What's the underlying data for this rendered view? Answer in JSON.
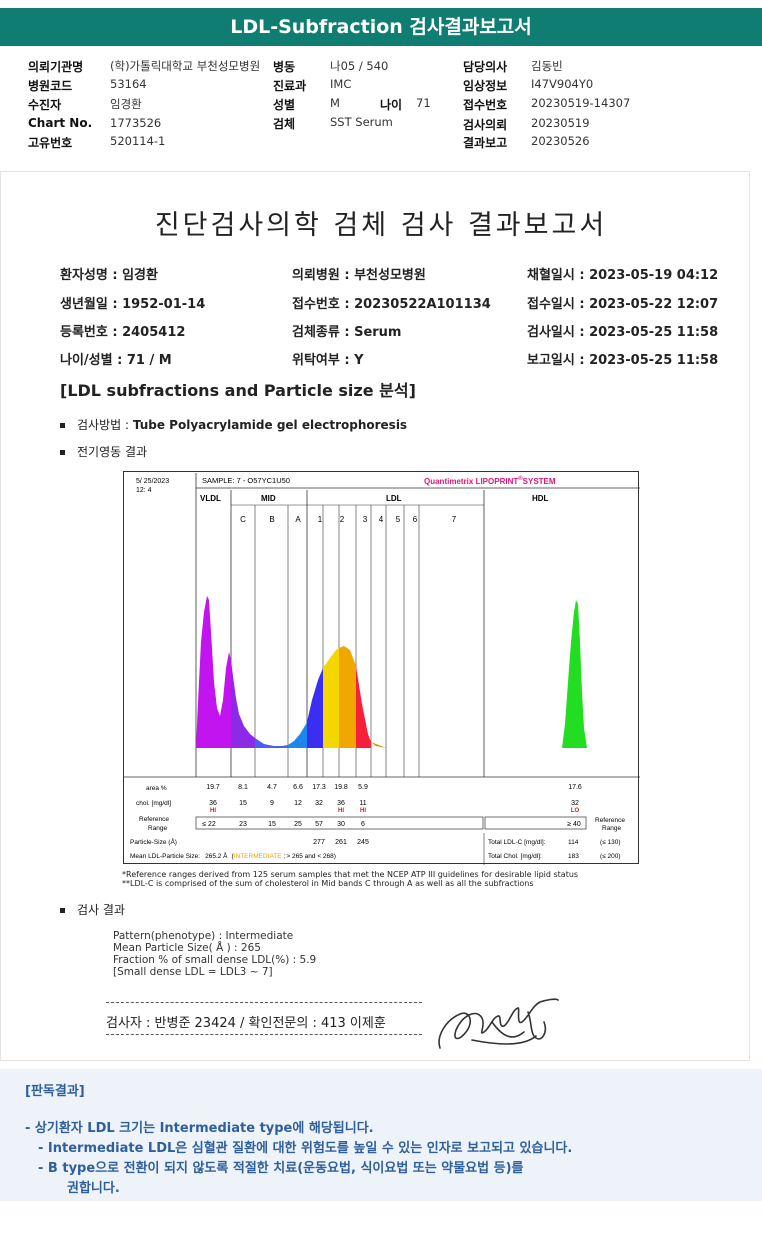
{
  "page_title": "LDL-Subfraction 검사결과보고서",
  "header_info": [
    {
      "label": "의뢰기관명",
      "value": "(학)가톨릭대학교 부천성모병원"
    },
    {
      "label": "병동",
      "value": "나05 / 540"
    },
    {
      "label": "담당의사",
      "value": "김동빈"
    },
    {
      "label": "병원코드",
      "value": "53164"
    },
    {
      "label": "진료과",
      "value": "IMC"
    },
    {
      "label": "임상정보",
      "value": "I47V904Y0"
    },
    {
      "label": "수진자",
      "value": "임경환"
    },
    {
      "label": "성별",
      "value": "M"
    },
    {
      "label": "나이",
      "value": "71"
    },
    {
      "label": "접수번호",
      "value": "20230519-14307"
    },
    {
      "label": "Chart No.",
      "value": "1773526"
    },
    {
      "label": "검체",
      "value": "SST Serum"
    },
    {
      "label": "검사의뢰",
      "value": "20230519"
    },
    {
      "label": "고유번호",
      "value": "520114-1"
    },
    {
      "label": "결과보고",
      "value": "20230526"
    }
  ],
  "report_title": "진단검사의학 검체 검사 결과보고서",
  "patient_info": [
    "환자성명 : 임경환",
    "의뢰병원 : 부천성모병원",
    "채혈일시 : 2023-05-19 04:12",
    "생년월일 : 1952-01-14",
    "접수번호 : 20230522A101134",
    "접수일시 : 2023-05-22 12:07",
    "등록번호 : 2405412",
    "검체종류 : Serum",
    "검사일시 : 2023-05-25 11:58",
    "나이/성별 : 71 / M",
    "위탁여부 : Y",
    "보고일시 : 2023-05-25 11:58"
  ],
  "section_heading": "[LDL subfractions and Particle size 분석]",
  "bullets": {
    "method_label": "검사방법 : ",
    "method_value": "Tube Polyacrylamide gel electrophoresis",
    "electro_label": "전기영동 결과",
    "result_label": "검사 결과"
  },
  "chart": {
    "date": "5/ 25/2023",
    "time": "12: 4",
    "sample": "SAMPLE:   7 - O57YC1U50",
    "brand": "Quantimetrix LIPOPRINT",
    "brand_mark": "®",
    "brand_suffix": "SYSTEM",
    "groups": [
      "VLDL",
      "MID",
      "LDL",
      "HDL"
    ],
    "bands": [
      "C",
      "B",
      "A",
      "1",
      "2",
      "3",
      "4",
      "5",
      "6",
      "7"
    ],
    "row_labels": {
      "area": "area %",
      "chol": "chol. [mg/dl]",
      "ref_a": "Reference",
      "ref_b": "Range",
      "particle": "Particle-Size (Å)",
      "mean": "Mean LDL-Particle Size:"
    },
    "area_values": [
      "19.7",
      "8.1",
      "4.7",
      "6.6",
      "17.3",
      "19.8",
      "5.9",
      "17.6"
    ],
    "chol_values": [
      "36",
      "15",
      "9",
      "12",
      "32",
      "36",
      "11",
      "32"
    ],
    "flags": [
      "HI",
      "HI",
      "HI",
      "LO"
    ],
    "ref_values": [
      "≤ 22",
      "23",
      "15",
      "25",
      "57",
      "30",
      "6",
      "≥ 40"
    ],
    "particle_sizes": [
      "277",
      "261",
      "245"
    ],
    "mean_value": "265.2 Å",
    "mean_class": "INTERMEDIATE",
    "mean_range": "> 265 and < 268)",
    "total_ldl_label": "Total LDL-C [mg/dl]:",
    "total_ldl_value": "114",
    "total_ldl_ref": "(≤ 130)",
    "total_chol_label": "Total Chol. [mg/dl]:",
    "total_chol_value": "183",
    "total_chol_ref": "(≤ 200)",
    "colors": {
      "vldl": "#c214ef",
      "midc": "#8d2ae8",
      "midb": "#4760ee",
      "mida": "#1f86ee",
      "ldl1": "#3a2ff0",
      "ldl2": "#f5d600",
      "ldl3": "#f0a800",
      "ldl4": "#f5203a",
      "hdl": "#22dd22",
      "brand": "#e0167a"
    }
  },
  "notes": [
    "*Reference ranges derived from 125 serum samples that met the NCEP ATP III guidelines for desirable lipid status",
    "**LDL-C is comprised of the sum of cholesterol in Mid bands C through A as well as all the subfractions"
  ],
  "results": [
    "Pattern(phenotype) : Intermediate",
    "Mean Particle Size( Å ) : 265",
    "Fraction % of small dense LDL(%) : 5.9",
    "[Small dense LDL = LDL3 ~ 7]"
  ],
  "sign_text": "검사자 : 반병준  23424  /  확인전문의 : 413  이제훈",
  "judgement": {
    "title": "[판독결과]",
    "lines": [
      "-  상기환자 LDL 크기는 Intermediate type에 해당됩니다.",
      "-  Intermediate LDL은 심혈관 질환에 대한 위험도를 높일 수 있는 인자로 보고되고 있습니다.",
      "-  B type으로 전환이 되지 않도록 적절한 치료(운동요법, 식이요법 또는 약물요법 등)를",
      "권합니다."
    ]
  }
}
